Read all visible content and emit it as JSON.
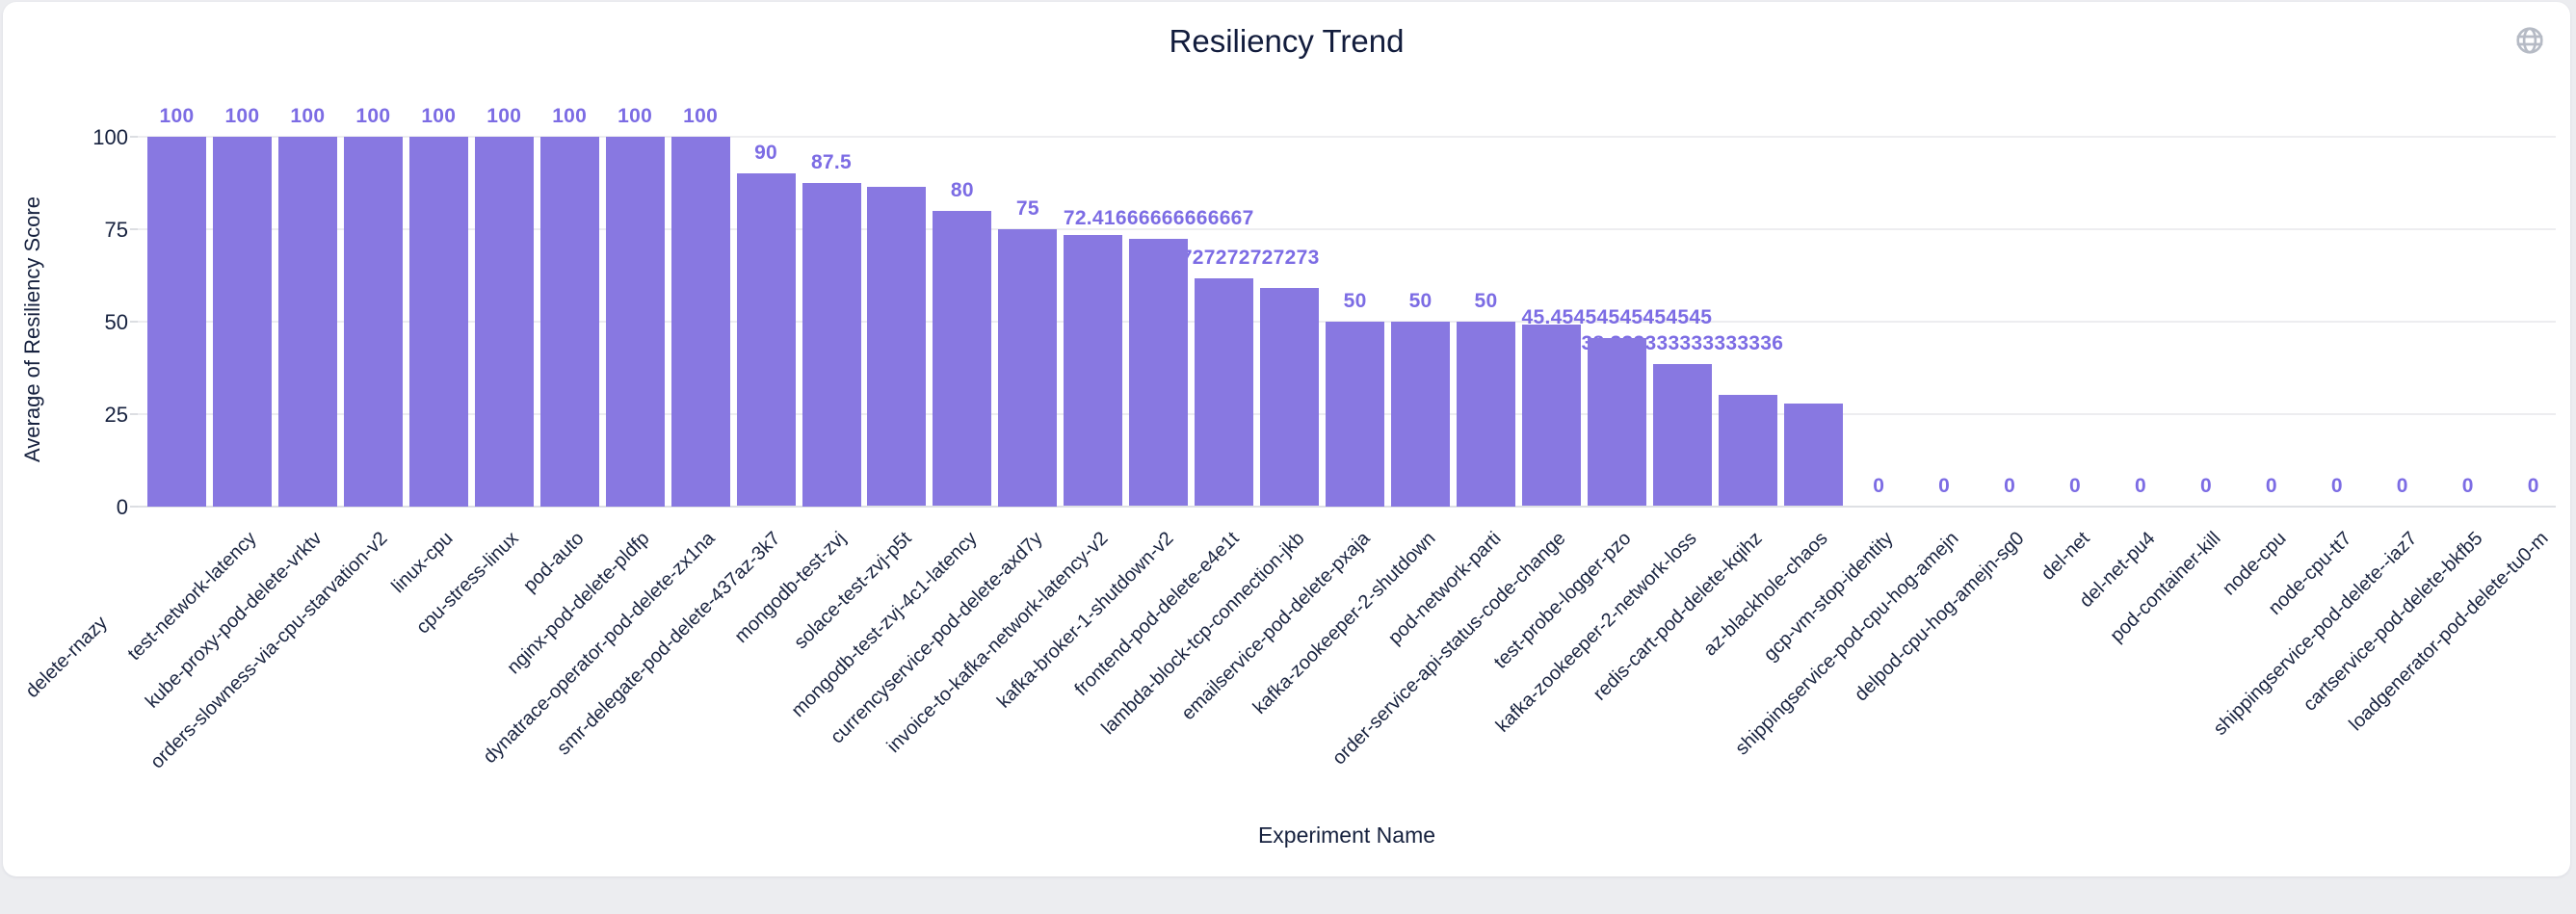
{
  "page": {
    "title": "Resiliency Trend"
  },
  "header": {
    "globe_icon": "globe-icon",
    "globe_color": "#B6BBC5"
  },
  "chart_data": {
    "type": "bar",
    "title": "Resiliency Trend",
    "xlabel": "Experiment Name",
    "ylabel": "Average of Resiliency Score",
    "ylim": [
      0,
      100
    ],
    "yticks": [
      0,
      25,
      50,
      75,
      100
    ],
    "grid": true,
    "legend": "none",
    "bar_color": "#8878E1",
    "value_label_color": "#7C6CE4",
    "axis_text_color": "#16213E",
    "gridline_color": "#EDEDF0",
    "categories": [
      "delete-rnazy",
      "test-network-latency",
      "kube-proxy-pod-delete-vrktv",
      "orders-slowness-via-cpu-starvation-v2",
      "linux-cpu",
      "cpu-stress-linux",
      "pod-auto",
      "nginx-pod-delete-pldfp",
      "dynatrace-operator-pod-delete-zx1na",
      "smr-delegate-pod-delete-437az-3k7",
      "mongodb-test-zvj",
      "solace-test-zvj-p5t",
      "mongodb-test-zvj-4c1-latency",
      "currencyservice-pod-delete-axd7y",
      "invoice-to-kafka-network-latency-v2",
      "kafka-broker-1-shutdown-v2",
      "frontend-pod-delete-e4e1t",
      "lambda-block-tcp-connection-jkb",
      "emailservice-pod-delete-pxaja",
      "kafka-zookeeper-2-shutdown",
      "pod-network-parti",
      "order-service-api-status-code-change",
      "test-probe-logger-pzo",
      "kafka-zookeeper-2-network-loss",
      "redis-cart-pod-delete-kqihz",
      "az-blackhole-chaos",
      "gcp-vm-stop-identity",
      "shippingservice-pod-cpu-hog-amejn",
      "delpod-cpu-hog-amejn-sg0",
      "del-net",
      "del-net-pu4",
      "pod-container-kill",
      "node-cpu",
      "node-cpu-tt7",
      "shippingservice-pod-delete--iaz7",
      "cartservice-pod-delete-bkfb5",
      "loadgenerator-pod-delete-tu0-m"
    ],
    "values": [
      100,
      100,
      100,
      100,
      100,
      100,
      100,
      100,
      100,
      90,
      87.5,
      86.41666666666667,
      80,
      75,
      73.33333333333333,
      72.41666666666667,
      61.72727272727273,
      59.09090909090909,
      50,
      50,
      50,
      49.09090909090909,
      45.45454545454545,
      38.333333333333336,
      30,
      27.77777777777778,
      0,
      0,
      0,
      0,
      0,
      0,
      0,
      0,
      0,
      0,
      0
    ],
    "hidden_value_label_indexes": [
      11,
      14,
      17,
      21,
      24,
      25
    ]
  }
}
